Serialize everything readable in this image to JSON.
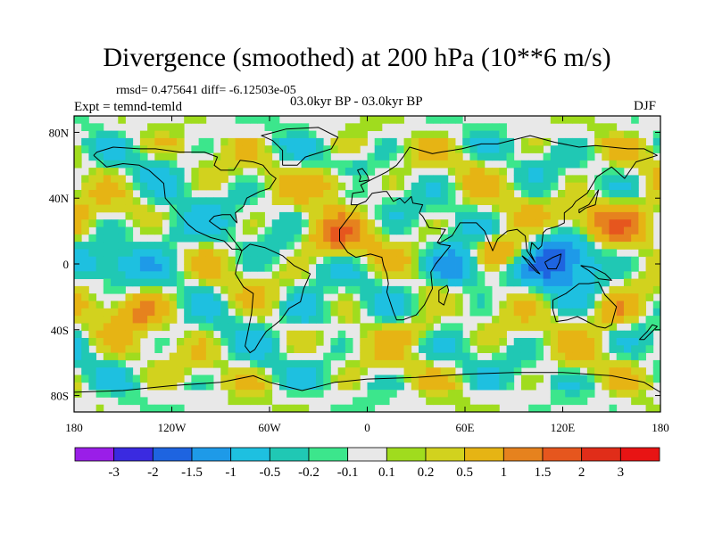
{
  "title": "Divergence (smoothed) at 200 hPa (10**6 m/s)",
  "stats_text": "rmsd= 0.475641 diff= -6.12503e-05",
  "period_text": "03.0kyr BP - 03.0kyr BP",
  "expt_text": "Expt = temnd-temld",
  "season": "DJF",
  "map": {
    "lon_range": [
      -180,
      180
    ],
    "lat_range": [
      -90,
      90
    ],
    "background": "#e8e8e8",
    "x_ticks": [
      {
        "value": -180,
        "label": "180"
      },
      {
        "value": -120,
        "label": "120W"
      },
      {
        "value": -60,
        "label": "60W"
      },
      {
        "value": 0,
        "label": "0"
      },
      {
        "value": 60,
        "label": "60E"
      },
      {
        "value": 120,
        "label": "120E"
      },
      {
        "value": 180,
        "label": "180"
      }
    ],
    "y_ticks": [
      {
        "value": 80,
        "label": "80N"
      },
      {
        "value": 40,
        "label": "40N"
      },
      {
        "value": 0,
        "label": "0"
      },
      {
        "value": -40,
        "label": "40S"
      },
      {
        "value": -80,
        "label": "80S"
      }
    ],
    "field_features": [
      {
        "name": "asia-pacific-positive",
        "lon": 150,
        "lat": 25,
        "value": 1.5,
        "sx": 22,
        "sy": 10
      },
      {
        "name": "indonesia-negative",
        "lon": 120,
        "lat": 5,
        "value": -2.0,
        "sx": 18,
        "sy": 12
      },
      {
        "name": "central-africa-negative",
        "lon": 55,
        "lat": -2,
        "value": -1.5,
        "sx": 12,
        "sy": 9
      },
      {
        "name": "indian-ocean-positive",
        "lon": 85,
        "lat": 8,
        "value": 1.5,
        "sx": 14,
        "sy": 7
      },
      {
        "name": "mid-atlantic-positive",
        "lon": -20,
        "lat": 15,
        "value": 1.2,
        "sx": 14,
        "sy": 8
      },
      {
        "name": "south-pacific-positive",
        "lon": -140,
        "lat": -28,
        "value": 1.0,
        "sx": 14,
        "sy": 8
      },
      {
        "name": "north-pacific-negative",
        "lon": -120,
        "lat": 20,
        "value": -0.8,
        "sx": 16,
        "sy": 8
      },
      {
        "name": "southern-ocean-positive",
        "lon": 30,
        "lat": -40,
        "value": 0.8,
        "sx": 12,
        "sy": 6
      },
      {
        "name": "south-atlantic-negative",
        "lon": -35,
        "lat": -30,
        "value": -0.8,
        "sx": 12,
        "sy": 8
      },
      {
        "name": "north-atlantic-positive",
        "lon": -20,
        "lat": 50,
        "value": 0.9,
        "sx": 12,
        "sy": 6
      },
      {
        "name": "equatorial-pacific-negative",
        "lon": -150,
        "lat": 0,
        "value": -0.7,
        "sx": 20,
        "sy": 6
      },
      {
        "name": "australia-positive",
        "lon": 150,
        "lat": -30,
        "value": 1.0,
        "sx": 12,
        "sy": 8
      }
    ]
  },
  "colorbar": {
    "levels": [
      {
        "label": "-3"
      },
      {
        "label": "-2"
      },
      {
        "label": "-1.5"
      },
      {
        "label": "-1"
      },
      {
        "label": "-0.5"
      },
      {
        "label": "-0.2"
      },
      {
        "label": "-0.1"
      },
      {
        "label": "0.1"
      },
      {
        "label": "0.2"
      },
      {
        "label": "0.5"
      },
      {
        "label": "1"
      },
      {
        "label": "1.5"
      },
      {
        "label": "2"
      },
      {
        "label": "3"
      }
    ],
    "colors": [
      "#9a1ee8",
      "#3a2ae0",
      "#1e64e0",
      "#1e9ae8",
      "#1ec0e0",
      "#20c8b4",
      "#3ce68c",
      "#e8e8e8",
      "#a0dc1e",
      "#d2d21e",
      "#e6b414",
      "#e6821e",
      "#e6561e",
      "#e02d19",
      "#e81414"
    ]
  }
}
